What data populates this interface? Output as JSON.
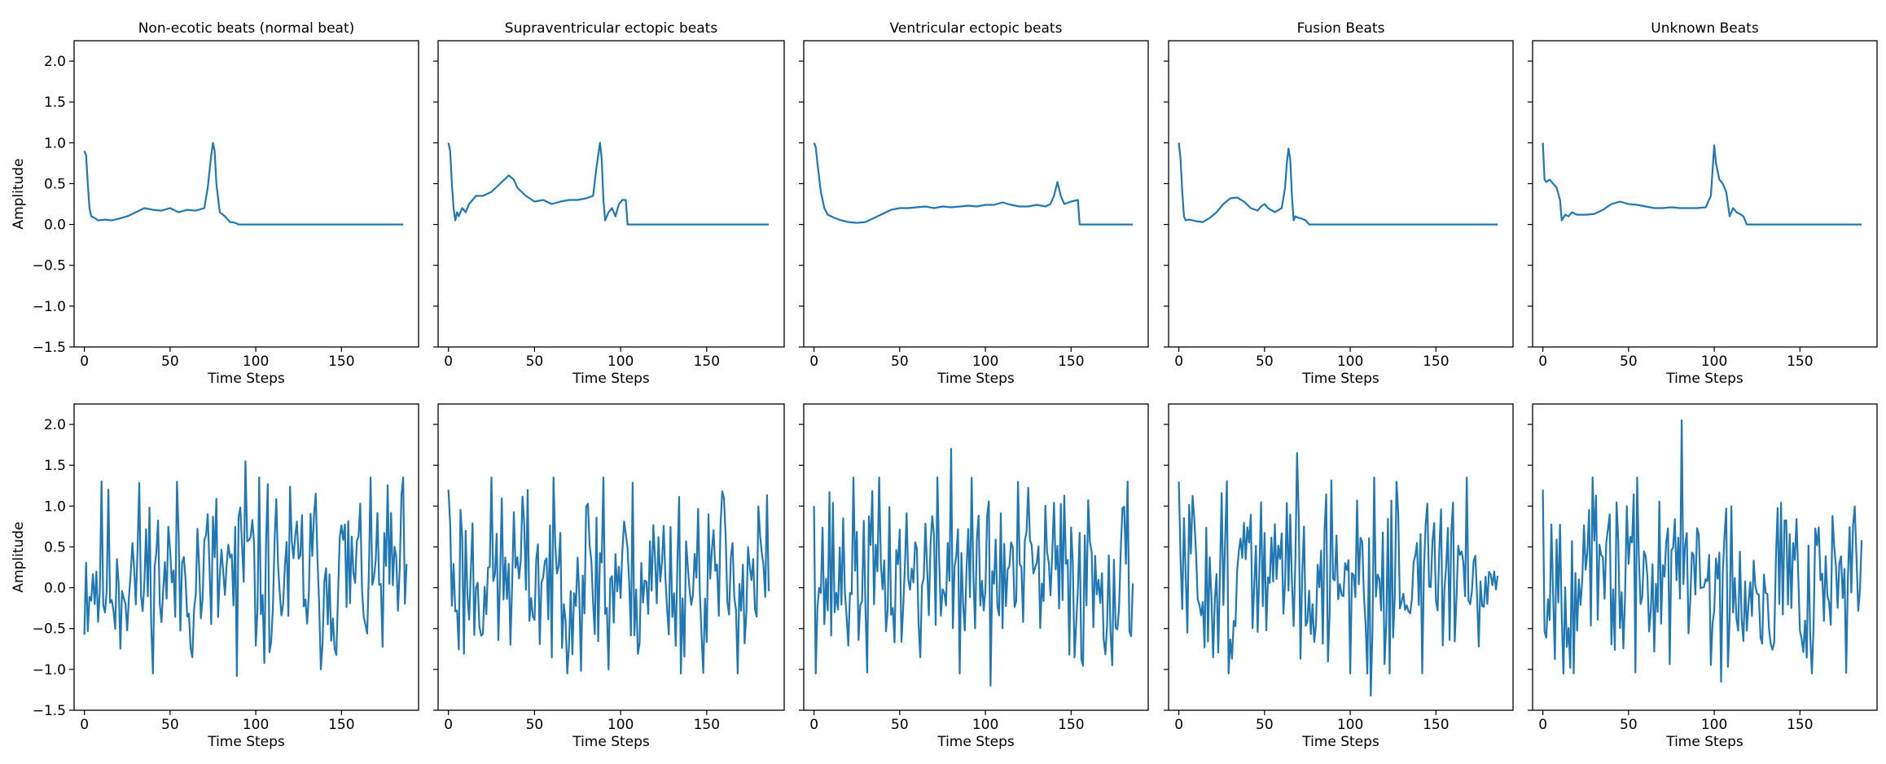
{
  "figure": {
    "line_color": "#1f77b4",
    "frame_color": "#000000",
    "row_ylabel": "Amplitude",
    "col_xlabel": "Time Steps",
    "xticks": [
      0,
      50,
      100,
      150
    ],
    "yticks": [
      -1.5,
      -1.0,
      -0.5,
      0.0,
      0.5,
      1.0,
      1.5,
      2.0
    ],
    "xlim": [
      -6,
      195
    ],
    "ylim": [
      -1.5,
      2.25
    ]
  },
  "chart_data": [
    {
      "type": "line",
      "title": "Non-ecotic beats (normal beat)",
      "xlabel": "Time Steps",
      "ylabel": "Amplitude",
      "row": 0,
      "col": 0,
      "series": [
        {
          "x_end": 186,
          "points": [
            [
              0,
              0.9
            ],
            [
              1,
              0.85
            ],
            [
              2,
              0.5
            ],
            [
              3,
              0.2
            ],
            [
              4,
              0.1
            ],
            [
              6,
              0.08
            ],
            [
              8,
              0.05
            ],
            [
              12,
              0.06
            ],
            [
              16,
              0.05
            ],
            [
              20,
              0.07
            ],
            [
              25,
              0.1
            ],
            [
              30,
              0.15
            ],
            [
              35,
              0.2
            ],
            [
              40,
              0.18
            ],
            [
              45,
              0.17
            ],
            [
              50,
              0.2
            ],
            [
              55,
              0.15
            ],
            [
              60,
              0.18
            ],
            [
              65,
              0.17
            ],
            [
              70,
              0.2
            ],
            [
              72,
              0.45
            ],
            [
              74,
              0.85
            ],
            [
              75,
              1.0
            ],
            [
              76,
              0.9
            ],
            [
              77,
              0.5
            ],
            [
              79,
              0.15
            ],
            [
              82,
              0.1
            ],
            [
              85,
              0.03
            ],
            [
              88,
              0.02
            ],
            [
              90,
              0.0
            ],
            [
              186,
              0.0
            ]
          ]
        }
      ]
    },
    {
      "type": "line",
      "title": "Supraventricular ectopic beats",
      "xlabel": "Time Steps",
      "ylabel": "",
      "row": 0,
      "col": 1,
      "series": [
        {
          "x_end": 186,
          "points": [
            [
              0,
              1.0
            ],
            [
              1,
              0.9
            ],
            [
              2,
              0.5
            ],
            [
              3,
              0.2
            ],
            [
              4,
              0.05
            ],
            [
              5,
              0.15
            ],
            [
              6,
              0.1
            ],
            [
              8,
              0.2
            ],
            [
              10,
              0.15
            ],
            [
              12,
              0.25
            ],
            [
              14,
              0.3
            ],
            [
              16,
              0.35
            ],
            [
              20,
              0.35
            ],
            [
              25,
              0.4
            ],
            [
              30,
              0.5
            ],
            [
              35,
              0.6
            ],
            [
              38,
              0.55
            ],
            [
              40,
              0.45
            ],
            [
              45,
              0.35
            ],
            [
              50,
              0.28
            ],
            [
              55,
              0.3
            ],
            [
              60,
              0.25
            ],
            [
              65,
              0.28
            ],
            [
              70,
              0.3
            ],
            [
              75,
              0.3
            ],
            [
              80,
              0.32
            ],
            [
              84,
              0.35
            ],
            [
              86,
              0.7
            ],
            [
              88,
              1.0
            ],
            [
              89,
              0.8
            ],
            [
              90,
              0.3
            ],
            [
              91,
              0.05
            ],
            [
              93,
              0.15
            ],
            [
              95,
              0.2
            ],
            [
              97,
              0.1
            ],
            [
              99,
              0.25
            ],
            [
              101,
              0.3
            ],
            [
              103,
              0.3
            ],
            [
              104,
              0.0
            ],
            [
              186,
              0.0
            ]
          ]
        }
      ]
    },
    {
      "type": "line",
      "title": "Ventricular ectopic beats",
      "xlabel": "Time Steps",
      "ylabel": "",
      "row": 0,
      "col": 2,
      "series": [
        {
          "x_end": 186,
          "points": [
            [
              0,
              1.0
            ],
            [
              1,
              0.95
            ],
            [
              2,
              0.75
            ],
            [
              4,
              0.4
            ],
            [
              6,
              0.2
            ],
            [
              8,
              0.12
            ],
            [
              12,
              0.08
            ],
            [
              16,
              0.05
            ],
            [
              20,
              0.03
            ],
            [
              25,
              0.02
            ],
            [
              30,
              0.03
            ],
            [
              35,
              0.08
            ],
            [
              40,
              0.13
            ],
            [
              45,
              0.18
            ],
            [
              50,
              0.2
            ],
            [
              55,
              0.2
            ],
            [
              60,
              0.21
            ],
            [
              65,
              0.22
            ],
            [
              70,
              0.2
            ],
            [
              75,
              0.22
            ],
            [
              80,
              0.21
            ],
            [
              85,
              0.22
            ],
            [
              90,
              0.23
            ],
            [
              95,
              0.22
            ],
            [
              100,
              0.24
            ],
            [
              105,
              0.24
            ],
            [
              110,
              0.27
            ],
            [
              115,
              0.24
            ],
            [
              120,
              0.22
            ],
            [
              125,
              0.22
            ],
            [
              130,
              0.24
            ],
            [
              135,
              0.22
            ],
            [
              138,
              0.25
            ],
            [
              140,
              0.35
            ],
            [
              142,
              0.52
            ],
            [
              144,
              0.35
            ],
            [
              146,
              0.25
            ],
            [
              150,
              0.28
            ],
            [
              154,
              0.3
            ],
            [
              155,
              0.0
            ],
            [
              186,
              0.0
            ]
          ]
        }
      ]
    },
    {
      "type": "line",
      "title": "Fusion Beats",
      "xlabel": "Time Steps",
      "ylabel": "",
      "row": 0,
      "col": 3,
      "series": [
        {
          "x_end": 186,
          "points": [
            [
              0,
              1.0
            ],
            [
              1,
              0.8
            ],
            [
              2,
              0.4
            ],
            [
              3,
              0.1
            ],
            [
              4,
              0.05
            ],
            [
              6,
              0.06
            ],
            [
              10,
              0.04
            ],
            [
              14,
              0.03
            ],
            [
              18,
              0.08
            ],
            [
              22,
              0.15
            ],
            [
              26,
              0.25
            ],
            [
              30,
              0.32
            ],
            [
              34,
              0.33
            ],
            [
              38,
              0.28
            ],
            [
              42,
              0.2
            ],
            [
              46,
              0.17
            ],
            [
              48,
              0.22
            ],
            [
              50,
              0.25
            ],
            [
              52,
              0.2
            ],
            [
              56,
              0.15
            ],
            [
              60,
              0.2
            ],
            [
              62,
              0.45
            ],
            [
              63,
              0.75
            ],
            [
              64,
              0.93
            ],
            [
              65,
              0.8
            ],
            [
              66,
              0.35
            ],
            [
              67,
              0.05
            ],
            [
              68,
              0.1
            ],
            [
              70,
              0.08
            ],
            [
              72,
              0.07
            ],
            [
              74,
              0.05
            ],
            [
              76,
              0.0
            ],
            [
              186,
              0.0
            ]
          ]
        }
      ]
    },
    {
      "type": "line",
      "title": "Unknown Beats",
      "xlabel": "Time Steps",
      "ylabel": "",
      "row": 0,
      "col": 4,
      "series": [
        {
          "x_end": 186,
          "points": [
            [
              0,
              1.0
            ],
            [
              1,
              0.55
            ],
            [
              2,
              0.52
            ],
            [
              4,
              0.55
            ],
            [
              6,
              0.5
            ],
            [
              8,
              0.45
            ],
            [
              10,
              0.3
            ],
            [
              11,
              0.05
            ],
            [
              13,
              0.12
            ],
            [
              15,
              0.1
            ],
            [
              17,
              0.15
            ],
            [
              20,
              0.12
            ],
            [
              25,
              0.12
            ],
            [
              30,
              0.13
            ],
            [
              35,
              0.18
            ],
            [
              40,
              0.25
            ],
            [
              45,
              0.28
            ],
            [
              50,
              0.25
            ],
            [
              55,
              0.24
            ],
            [
              60,
              0.22
            ],
            [
              65,
              0.2
            ],
            [
              70,
              0.2
            ],
            [
              75,
              0.21
            ],
            [
              80,
              0.2
            ],
            [
              85,
              0.2
            ],
            [
              90,
              0.2
            ],
            [
              95,
              0.21
            ],
            [
              98,
              0.35
            ],
            [
              100,
              0.97
            ],
            [
              101,
              0.75
            ],
            [
              103,
              0.55
            ],
            [
              105,
              0.5
            ],
            [
              107,
              0.4
            ],
            [
              109,
              0.1
            ],
            [
              111,
              0.2
            ],
            [
              113,
              0.15
            ],
            [
              115,
              0.13
            ],
            [
              117,
              0.1
            ],
            [
              119,
              0.0
            ],
            [
              186,
              0.0
            ]
          ]
        }
      ]
    },
    {
      "type": "line",
      "title": "",
      "xlabel": "Time Steps",
      "ylabel": "Amplitude",
      "row": 1,
      "col": 0,
      "noise": true,
      "seed": 11,
      "len": 188,
      "peak": 1.55,
      "trough": -1.08
    },
    {
      "type": "line",
      "title": "",
      "xlabel": "Time Steps",
      "ylabel": "",
      "row": 1,
      "col": 1,
      "noise": true,
      "seed": 23,
      "len": 186,
      "start": 1.2,
      "peak": 1.35,
      "trough": -1.0
    },
    {
      "type": "line",
      "title": "",
      "xlabel": "Time Steps",
      "ylabel": "",
      "row": 1,
      "col": 2,
      "noise": true,
      "seed": 37,
      "len": 186,
      "start": 1.0,
      "peak": 1.7,
      "trough": -1.2
    },
    {
      "type": "line",
      "title": "",
      "xlabel": "Time Steps",
      "ylabel": "",
      "row": 1,
      "col": 3,
      "noise": true,
      "seed": 51,
      "len": 186,
      "start": 1.3,
      "peak": 1.65,
      "trough": -1.32
    },
    {
      "type": "line",
      "title": "",
      "xlabel": "Time Steps",
      "ylabel": "",
      "row": 1,
      "col": 4,
      "noise": true,
      "seed": 67,
      "len": 186,
      "start": 1.2,
      "peak": 2.05,
      "trough": -1.15
    }
  ]
}
